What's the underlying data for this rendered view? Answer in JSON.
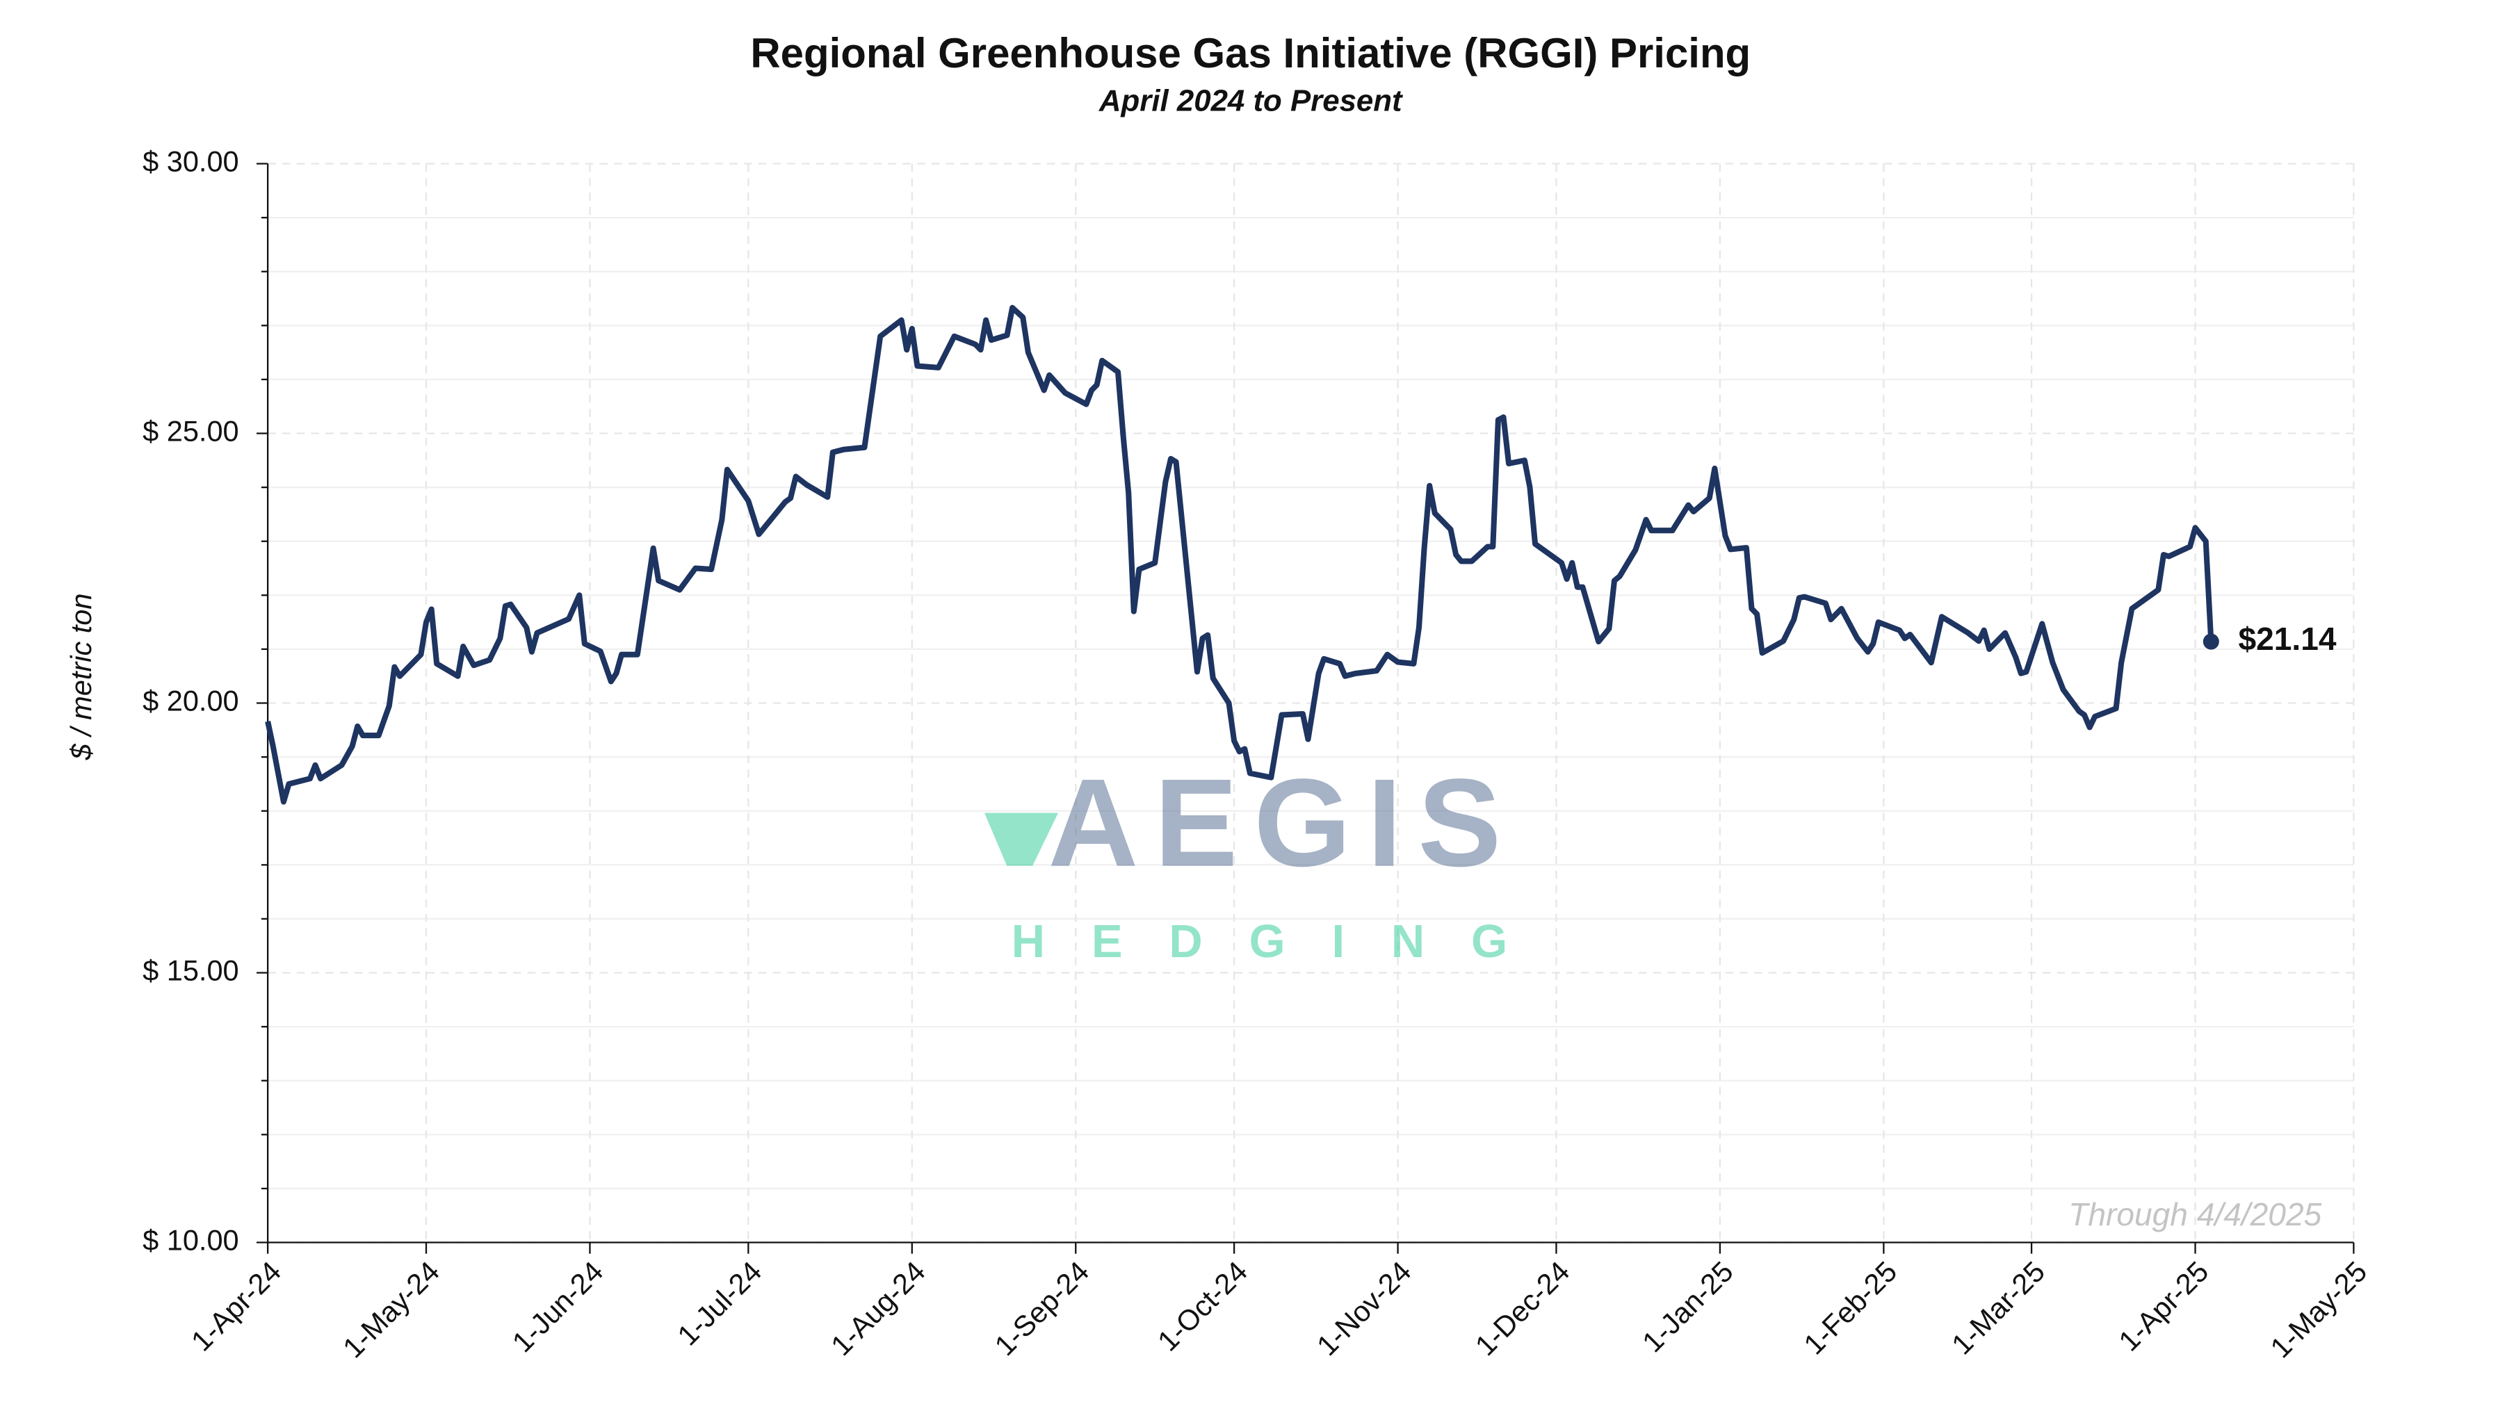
{
  "chart_data": {
    "type": "line",
    "title": "Regional Greenhouse Gas Initiative (RGGI) Pricing",
    "subtitle": "April 2024 to Present",
    "y_label": "$ / metric ton",
    "note": "Through 4/4/2025",
    "end_label": "$21.14",
    "watermark": {
      "top": "AEGIS",
      "bottom": "HEDGING"
    },
    "grid": true,
    "xlim": [
      "2024-04-01",
      "2025-05-01"
    ],
    "xticks": [
      {
        "value": "2024-04-01",
        "label": "1-Apr-24"
      },
      {
        "value": "2024-05-01",
        "label": "1-May-24"
      },
      {
        "value": "2024-06-01",
        "label": "1-Jun-24"
      },
      {
        "value": "2024-07-01",
        "label": "1-Jul-24"
      },
      {
        "value": "2024-08-01",
        "label": "1-Aug-24"
      },
      {
        "value": "2024-09-01",
        "label": "1-Sep-24"
      },
      {
        "value": "2024-10-01",
        "label": "1-Oct-24"
      },
      {
        "value": "2024-11-01",
        "label": "1-Nov-24"
      },
      {
        "value": "2024-12-01",
        "label": "1-Dec-24"
      },
      {
        "value": "2025-01-01",
        "label": "1-Jan-25"
      },
      {
        "value": "2025-02-01",
        "label": "1-Feb-25"
      },
      {
        "value": "2025-03-01",
        "label": "1-Mar-25"
      },
      {
        "value": "2025-04-01",
        "label": "1-Apr-25"
      },
      {
        "value": "2025-05-01",
        "label": "1-May-25"
      }
    ],
    "ylim": [
      10,
      30
    ],
    "yticks": [
      {
        "value": 10,
        "label": "$ 10.00"
      },
      {
        "value": 15,
        "label": "$ 15.00"
      },
      {
        "value": 20,
        "label": "$ 20.00"
      },
      {
        "value": 25,
        "label": "$ 25.00"
      },
      {
        "value": 30,
        "label": "$ 30.00"
      }
    ],
    "yminorticks": [
      11,
      12,
      13,
      14,
      16,
      17,
      18,
      19,
      21,
      22,
      23,
      24,
      26,
      27,
      28,
      29
    ],
    "x": [
      "2024-04-01",
      "2024-04-02",
      "2024-04-04",
      "2024-04-05",
      "2024-04-09",
      "2024-04-10",
      "2024-04-11",
      "2024-04-15",
      "2024-04-17",
      "2024-04-18",
      "2024-04-19",
      "2024-04-22",
      "2024-04-24",
      "2024-04-25",
      "2024-04-26",
      "2024-04-30",
      "2024-05-01",
      "2024-05-02",
      "2024-05-03",
      "2024-05-07",
      "2024-05-08",
      "2024-05-10",
      "2024-05-13",
      "2024-05-15",
      "2024-05-16",
      "2024-05-17",
      "2024-05-20",
      "2024-05-21",
      "2024-05-22",
      "2024-05-28",
      "2024-05-30",
      "2024-05-31",
      "2024-06-03",
      "2024-06-05",
      "2024-06-06",
      "2024-06-07",
      "2024-06-10",
      "2024-06-13",
      "2024-06-14",
      "2024-06-18",
      "2024-06-21",
      "2024-06-24",
      "2024-06-26",
      "2024-06-27",
      "2024-07-01",
      "2024-07-03",
      "2024-07-08",
      "2024-07-09",
      "2024-07-10",
      "2024-07-12",
      "2024-07-16",
      "2024-07-17",
      "2024-07-19",
      "2024-07-23",
      "2024-07-26",
      "2024-07-30",
      "2024-07-31",
      "2024-08-01",
      "2024-08-02",
      "2024-08-06",
      "2024-08-09",
      "2024-08-13",
      "2024-08-14",
      "2024-08-15",
      "2024-08-16",
      "2024-08-19",
      "2024-08-20",
      "2024-08-22",
      "2024-08-23",
      "2024-08-26",
      "2024-08-27",
      "2024-08-30",
      "2024-09-03",
      "2024-09-04",
      "2024-09-05",
      "2024-09-06",
      "2024-09-09",
      "2024-09-10",
      "2024-09-11",
      "2024-09-12",
      "2024-09-13",
      "2024-09-16",
      "2024-09-18",
      "2024-09-19",
      "2024-09-20",
      "2024-09-24",
      "2024-09-25",
      "2024-09-26",
      "2024-09-27",
      "2024-09-30",
      "2024-10-01",
      "2024-10-02",
      "2024-10-03",
      "2024-10-04",
      "2024-10-08",
      "2024-10-10",
      "2024-10-14",
      "2024-10-15",
      "2024-10-17",
      "2024-10-18",
      "2024-10-21",
      "2024-10-22",
      "2024-10-24",
      "2024-10-28",
      "2024-10-30",
      "2024-11-01",
      "2024-11-04",
      "2024-11-05",
      "2024-11-06",
      "2024-11-07",
      "2024-11-08",
      "2024-11-11",
      "2024-11-12",
      "2024-11-13",
      "2024-11-15",
      "2024-11-18",
      "2024-11-19",
      "2024-11-20",
      "2024-11-21",
      "2024-11-22",
      "2024-11-25",
      "2024-11-26",
      "2024-11-27",
      "2024-12-02",
      "2024-12-03",
      "2024-12-04",
      "2024-12-05",
      "2024-12-06",
      "2024-12-09",
      "2024-12-11",
      "2024-12-12",
      "2024-12-13",
      "2024-12-16",
      "2024-12-18",
      "2024-12-19",
      "2024-12-23",
      "2024-12-26",
      "2024-12-27",
      "2024-12-30",
      "2024-12-31",
      "2025-01-02",
      "2025-01-03",
      "2025-01-06",
      "2025-01-07",
      "2025-01-08",
      "2025-01-09",
      "2025-01-13",
      "2025-01-15",
      "2025-01-16",
      "2025-01-17",
      "2025-01-21",
      "2025-01-22",
      "2025-01-24",
      "2025-01-27",
      "2025-01-29",
      "2025-01-30",
      "2025-01-31",
      "2025-02-04",
      "2025-02-05",
      "2025-02-06",
      "2025-02-10",
      "2025-02-12",
      "2025-02-17",
      "2025-02-19",
      "2025-02-20",
      "2025-02-21",
      "2025-02-24",
      "2025-02-26",
      "2025-02-27",
      "2025-02-28",
      "2025-03-03",
      "2025-03-05",
      "2025-03-07",
      "2025-03-10",
      "2025-03-11",
      "2025-03-12",
      "2025-03-13",
      "2025-03-17",
      "2025-03-18",
      "2025-03-20",
      "2025-03-25",
      "2025-03-26",
      "2025-03-27",
      "2025-03-31",
      "2025-04-01",
      "2025-04-03",
      "2025-04-04"
    ],
    "series": [
      {
        "name": "RGGI",
        "color": "#1e3461",
        "values": [
          19.66,
          19.2,
          18.17,
          18.5,
          18.6,
          18.85,
          18.6,
          18.85,
          19.2,
          19.57,
          19.4,
          19.4,
          19.95,
          20.67,
          20.5,
          20.9,
          21.5,
          21.74,
          20.73,
          20.5,
          21.05,
          20.7,
          20.8,
          21.2,
          21.8,
          21.83,
          21.4,
          20.95,
          21.3,
          21.56,
          22.0,
          21.1,
          20.96,
          20.4,
          20.55,
          20.9,
          20.9,
          22.87,
          22.27,
          22.1,
          22.5,
          22.48,
          23.4,
          24.33,
          23.75,
          23.13,
          23.73,
          23.8,
          24.2,
          24.05,
          23.82,
          24.65,
          24.7,
          24.74,
          26.8,
          27.1,
          26.55,
          26.94,
          26.25,
          26.22,
          26.8,
          26.65,
          26.55,
          27.1,
          26.73,
          26.82,
          27.33,
          27.15,
          26.5,
          25.8,
          26.08,
          25.75,
          25.54,
          25.8,
          25.9,
          26.35,
          26.14,
          24.95,
          23.9,
          21.7,
          22.48,
          22.6,
          24.1,
          24.53,
          24.47,
          20.58,
          21.2,
          21.26,
          20.46,
          20.0,
          19.3,
          19.1,
          19.15,
          18.7,
          18.62,
          19.78,
          19.8,
          19.33,
          20.55,
          20.82,
          20.73,
          20.5,
          20.55,
          20.6,
          20.9,
          20.76,
          20.73,
          21.4,
          22.87,
          24.03,
          23.52,
          23.22,
          22.75,
          22.63,
          22.63,
          22.9,
          22.9,
          25.25,
          25.3,
          24.44,
          24.5,
          24.0,
          22.95,
          22.6,
          22.3,
          22.6,
          22.15,
          22.15,
          21.14,
          21.38,
          22.27,
          22.35,
          22.84,
          23.4,
          23.2,
          23.2,
          23.67,
          23.55,
          23.8,
          24.35,
          23.1,
          22.85,
          22.88,
          21.75,
          21.65,
          20.93,
          21.15,
          21.55,
          21.95,
          21.97,
          21.85,
          21.55,
          21.75,
          21.2,
          20.95,
          21.1,
          21.5,
          21.35,
          21.2,
          21.27,
          20.75,
          21.6,
          21.3,
          21.15,
          21.35,
          21.0,
          21.3,
          20.85,
          20.55,
          20.58,
          21.47,
          20.75,
          20.25,
          19.85,
          19.78,
          19.55,
          19.75,
          19.9,
          20.75,
          21.75,
          22.1,
          22.75,
          22.72,
          22.9,
          23.25,
          23.0,
          21.14
        ]
      }
    ]
  }
}
